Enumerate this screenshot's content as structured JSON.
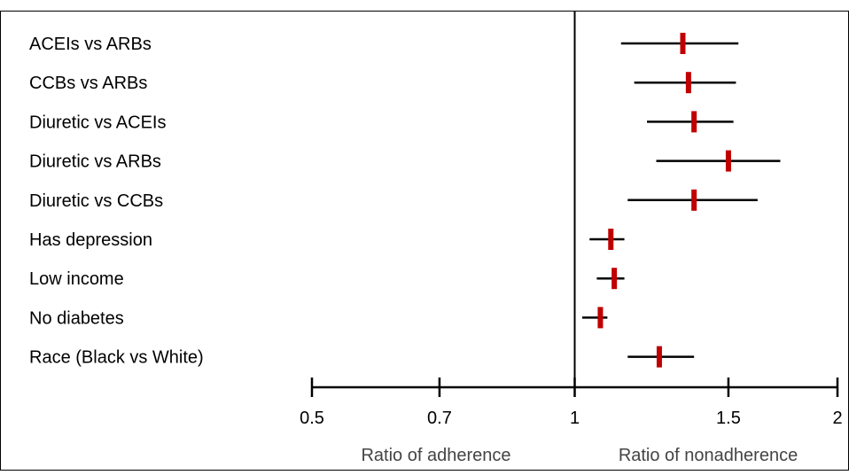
{
  "chart_data": {
    "type": "forest",
    "scale": "log",
    "x_ticks": [
      0.5,
      0.7,
      1,
      1.5,
      2
    ],
    "xlim": [
      0.5,
      2
    ],
    "reference_line": 1,
    "left_label": "Ratio of adherence",
    "right_label": "Ratio of nonadherence",
    "colors": {
      "point": "#c00000",
      "ci": "#000000",
      "axis": "#000000"
    },
    "rows": [
      {
        "label": "ACEIs vs ARBs",
        "estimate": 1.33,
        "lower": 1.13,
        "upper": 1.54
      },
      {
        "label": "CCBs vs ARBs",
        "estimate": 1.35,
        "lower": 1.17,
        "upper": 1.53
      },
      {
        "label": "Diuretic vs ACEIs",
        "estimate": 1.37,
        "lower": 1.21,
        "upper": 1.52
      },
      {
        "label": "Diuretic vs ARBs",
        "estimate": 1.5,
        "lower": 1.24,
        "upper": 1.72
      },
      {
        "label": "Diuretic vs CCBs",
        "estimate": 1.37,
        "lower": 1.15,
        "upper": 1.62
      },
      {
        "label": "Has depression",
        "estimate": 1.1,
        "lower": 1.04,
        "upper": 1.14
      },
      {
        "label": "Low income",
        "estimate": 1.11,
        "lower": 1.06,
        "upper": 1.14
      },
      {
        "label": "No diabetes",
        "estimate": 1.07,
        "lower": 1.02,
        "upper": 1.09
      },
      {
        "label": "Race (Black vs White)",
        "estimate": 1.25,
        "lower": 1.15,
        "upper": 1.37
      }
    ]
  }
}
